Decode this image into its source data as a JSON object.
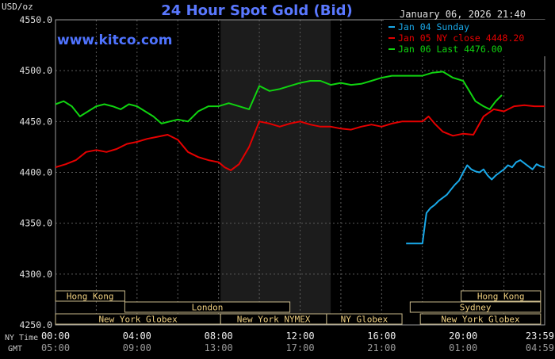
{
  "chart_data": {
    "type": "line",
    "title": "24 Hour Spot Gold (Bid)",
    "watermark": "www.kitco.com",
    "timestamp": "January 06, 2026 21:40",
    "y_unit_label": "USD/oz",
    "ylim": [
      4250,
      4550
    ],
    "y_ticks": [
      {
        "value": 4250,
        "label": "4250.0"
      },
      {
        "value": 4300,
        "label": "4300.0"
      },
      {
        "value": 4350,
        "label": "4350.0"
      },
      {
        "value": 4400,
        "label": "4400.0"
      },
      {
        "value": 4450,
        "label": "4450.0"
      },
      {
        "value": 4500,
        "label": "4500.0"
      },
      {
        "value": 4550,
        "label": "4550.0"
      }
    ],
    "x_unit": "hours (NY time)",
    "xlim": [
      0,
      24
    ],
    "x_ticks": [
      {
        "value": 0,
        "ny": "00:00",
        "gmt": "05:00"
      },
      {
        "value": 4,
        "ny": "04:00",
        "gmt": "09:00"
      },
      {
        "value": 8,
        "ny": "08:00",
        "gmt": "13:00"
      },
      {
        "value": 12,
        "ny": "12:00",
        "gmt": "17:00"
      },
      {
        "value": 16,
        "ny": "16:00",
        "gmt": "21:00"
      },
      {
        "value": 20,
        "ny": "20:00",
        "gmt": "01:00"
      },
      {
        "value": 23.98,
        "ny": "23:59",
        "gmt": "04:59"
      }
    ],
    "x_row_labels": {
      "ny": "NY Time",
      "gmt": "GMT"
    },
    "grid": true,
    "shaded_region": [
      8.1,
      13.5
    ],
    "legend_position": "top-right",
    "series": [
      {
        "name": "Jan 04 Sunday",
        "legend": "Jan 04 Sunday",
        "color": "#19a8e8",
        "x": [
          17.2,
          18.0,
          18.1,
          18.2,
          18.4,
          18.6,
          18.8,
          19.0,
          19.2,
          19.4,
          19.6,
          19.8,
          20.0,
          20.2,
          20.4,
          20.6,
          20.8,
          21.0,
          21.2,
          21.4,
          21.6,
          21.8,
          22.0,
          22.2,
          22.4,
          22.6,
          22.8,
          23.0,
          23.2,
          23.4,
          23.6,
          23.8,
          24.0
        ],
        "y": [
          4330,
          4330,
          4345,
          4360,
          4365,
          4368,
          4372,
          4375,
          4378,
          4383,
          4388,
          4392,
          4400,
          4407,
          4403,
          4401,
          4400,
          4403,
          4397,
          4393,
          4397,
          4400,
          4403,
          4407,
          4405,
          4410,
          4412,
          4409,
          4406,
          4403,
          4408,
          4406,
          4405
        ]
      },
      {
        "name": "Jan 05 NY close 4448.20",
        "legend": "Jan 05 NY close 4448.20",
        "color": "#e60000",
        "x": [
          0,
          0.5,
          1.0,
          1.5,
          2.0,
          2.5,
          3.0,
          3.5,
          4.0,
          4.5,
          5.0,
          5.5,
          6.0,
          6.5,
          7.0,
          7.5,
          8.0,
          8.3,
          8.6,
          9.0,
          9.5,
          10.0,
          10.5,
          11.0,
          11.5,
          12.0,
          12.5,
          13.0,
          13.5,
          14.0,
          14.5,
          15.0,
          15.5,
          16.0,
          16.5,
          17.0,
          17.5,
          18.0,
          18.3,
          18.6,
          19.0,
          19.5,
          20.0,
          20.5,
          21.0,
          21.5,
          22.0,
          22.5,
          23.0,
          23.5,
          24.0
        ],
        "y": [
          4405,
          4408,
          4412,
          4420,
          4422,
          4420,
          4423,
          4428,
          4430,
          4433,
          4435,
          4437,
          4432,
          4420,
          4415,
          4412,
          4410,
          4405,
          4402,
          4408,
          4425,
          4450,
          4448,
          4445,
          4448,
          4450,
          4447,
          4445,
          4445,
          4443,
          4442,
          4445,
          4447,
          4445,
          4448,
          4450,
          4450,
          4450,
          4455,
          4448,
          4440,
          4436,
          4438,
          4437,
          4455,
          4462,
          4460,
          4465,
          4466,
          4465,
          4465
        ]
      },
      {
        "name": "Jan 06 Last 4476.00",
        "legend": "Jan 06 Last 4476.00",
        "color": "#10d410",
        "x": [
          0,
          0.4,
          0.8,
          1.2,
          1.6,
          2.0,
          2.4,
          2.8,
          3.2,
          3.6,
          4.0,
          4.4,
          4.8,
          5.2,
          5.6,
          6.0,
          6.5,
          7.0,
          7.5,
          8.0,
          8.5,
          9.0,
          9.5,
          10.0,
          10.5,
          11.0,
          11.5,
          12.0,
          12.5,
          13.0,
          13.5,
          14.0,
          14.5,
          15.0,
          15.5,
          16.0,
          16.5,
          17.0,
          17.5,
          18.0,
          18.5,
          19.0,
          19.5,
          20.0,
          20.3,
          20.6,
          21.0,
          21.3,
          21.6,
          21.9
        ],
        "y": [
          4467,
          4470,
          4465,
          4455,
          4460,
          4465,
          4467,
          4465,
          4462,
          4467,
          4465,
          4460,
          4455,
          4448,
          4450,
          4452,
          4450,
          4460,
          4465,
          4465,
          4468,
          4465,
          4462,
          4485,
          4480,
          4482,
          4485,
          4488,
          4490,
          4490,
          4486,
          4488,
          4486,
          4487,
          4490,
          4493,
          4495,
          4495,
          4495,
          4495,
          4498,
          4499,
          4493,
          4490,
          4480,
          4470,
          4465,
          4462,
          4470,
          4476
        ]
      }
    ],
    "sessions": [
      {
        "label": "Hong Kong",
        "start": 0,
        "end": 3.4,
        "row": 0
      },
      {
        "label": "Hong Kong",
        "start": 19.9,
        "end": 23.8,
        "row": 0
      },
      {
        "label": "London",
        "start": 3.4,
        "end": 11.5,
        "row": 1
      },
      {
        "label": "Sydney",
        "start": 17.4,
        "end": 23.8,
        "row": 1
      },
      {
        "label": "New York Globex",
        "start": 0,
        "end": 8.1,
        "row": 2
      },
      {
        "label": "New York NYMEX",
        "start": 8.1,
        "end": 13.3,
        "row": 2
      },
      {
        "label": "NY Globex",
        "start": 13.3,
        "end": 17.0,
        "row": 2
      },
      {
        "label": "New York Globex",
        "start": 17.9,
        "end": 23.8,
        "row": 2
      }
    ]
  }
}
